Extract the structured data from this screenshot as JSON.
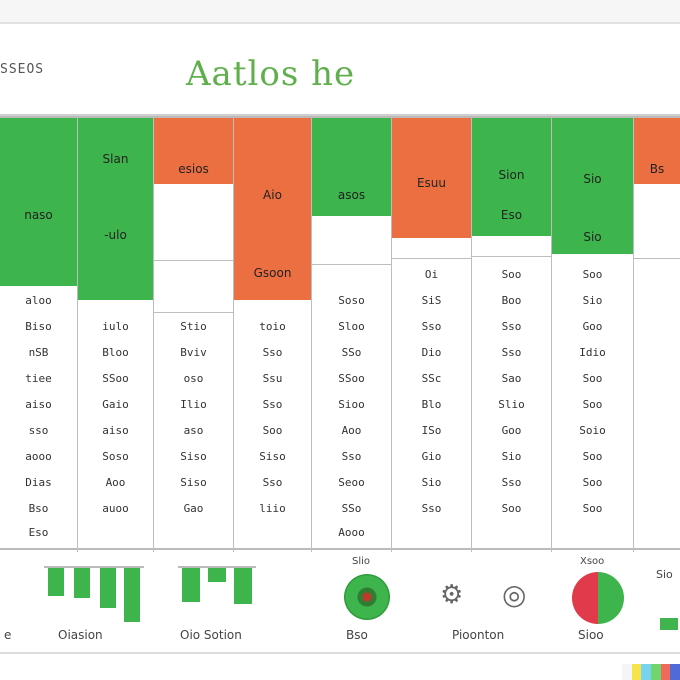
{
  "header": {
    "brand": "SSEOS",
    "title": "Aatlos he"
  },
  "columns": [
    {
      "block_label": "naso",
      "sub_label": "",
      "cells": [
        "aloo",
        "Biso",
        "nSB",
        "tiee",
        "aiso",
        "sso",
        "aooo",
        "Dias",
        "Bso",
        "Eso"
      ]
    },
    {
      "block_label": "Slan",
      "sub_label": "-ulo",
      "cells": [
        "",
        "iulo",
        "Bloo",
        "SSoo",
        "Gaio",
        "aiso",
        "Soso",
        "Aoo",
        "auoo",
        ""
      ]
    },
    {
      "block_label": "esios",
      "sub_label": "",
      "cells": [
        "",
        "Stio",
        "Bviv",
        "oso",
        "Ilio",
        "aso",
        "Siso",
        "Siso",
        "Gao",
        ""
      ]
    },
    {
      "block_label": "Aio",
      "sub_label": "Gsoon",
      "cells": [
        "",
        "toio",
        "Sso",
        "Ssu",
        "Sso",
        "Soo",
        "Siso",
        "Sso",
        "liio",
        ""
      ]
    },
    {
      "block_label": "asos",
      "sub_label": "",
      "cells": [
        "Soso",
        "Sloo",
        "SSo",
        "SSoo",
        "Sioo",
        "Aoo",
        "Sso",
        "Seoo",
        "SSo",
        "Aooo"
      ]
    },
    {
      "block_label": "Esuu",
      "sub_label": "",
      "cells": [
        "Oi",
        "SiS",
        "Sso",
        "Dio",
        "SSc",
        "Blo",
        "ISo",
        "Gio",
        "Sio",
        "Sso"
      ]
    },
    {
      "block_label": "Sion",
      "sub_label": "Eso",
      "cells": [
        "Soo",
        "Boo",
        "Sso",
        "Sso",
        "Sao",
        "Slio",
        "Goo",
        "Sio",
        "Sso",
        "Soo"
      ]
    },
    {
      "block_label": "Sio",
      "sub_label": "Sio",
      "cells": [
        "Soo",
        "Sio",
        "Goo",
        "Idio",
        "Soo",
        "Soo",
        "Soio",
        "Soo",
        "Soo",
        "Soo"
      ]
    },
    {
      "block_label": "Bs",
      "sub_label": "",
      "cells": [
        "",
        "",
        "",
        "",
        "",
        "",
        "",
        "",
        "",
        ""
      ]
    }
  ],
  "footer": {
    "left_label": "e",
    "chart1_label": "Oiasion",
    "chart2_label": "Oio Sotion",
    "donut1_caption": "Slio",
    "donut1_label": "Bso",
    "tool_label": "Pioonton",
    "donut2_caption": "Xsoo",
    "donut2_label": "Sioo",
    "right_label": "Sio"
  },
  "colors": {
    "green": "#3eb54c",
    "orange": "#ec6f42",
    "title_green": "#5fb04c"
  },
  "icons": {
    "donut1": "green-donut-icon",
    "donut2": "red-green-donut-icon",
    "tool1": "settings-tool-icon",
    "tool2": "globe-icon"
  }
}
